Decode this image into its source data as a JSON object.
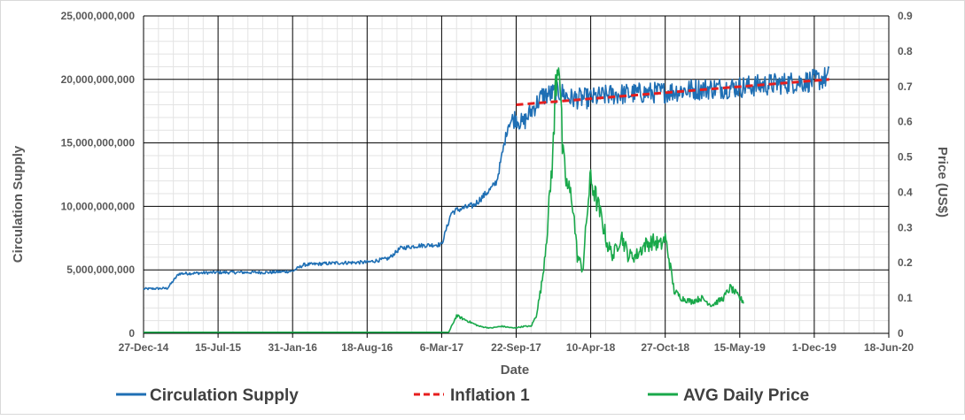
{
  "chart_data": {
    "type": "line",
    "xlabel": "Date",
    "ylabel": "Circulation Supply",
    "y2label": "Price (US$)",
    "x_ticks": [
      "27-Dec-14",
      "15-Jul-15",
      "31-Jan-16",
      "18-Aug-16",
      "6-Mar-17",
      "22-Sep-17",
      "10-Apr-18",
      "27-Oct-18",
      "15-May-19",
      "1-Dec-19",
      "18-Jun-20"
    ],
    "y_ticks": [
      "0",
      "5,000,000,000",
      "10,000,000,000",
      "15,000,000,000",
      "20,000,000,000",
      "25,000,000,000"
    ],
    "y2_ticks": [
      "0",
      "0.1",
      "0.2",
      "0.3",
      "0.4",
      "0.5",
      "0.6",
      "0.7",
      "0.8",
      "0.9"
    ],
    "ylim": [
      0,
      25000000000
    ],
    "y2lim": [
      0,
      0.9
    ],
    "x_range": [
      "2014-12-27",
      "2020-06-18"
    ],
    "grid": true,
    "legend_position": "bottom",
    "series": [
      {
        "name": "Circulation Supply",
        "axis": "left",
        "color": "#1f6fb4",
        "style": "solid",
        "x": [
          "2014-12-27",
          "2015-03-01",
          "2015-04-01",
          "2015-07-15",
          "2015-12-01",
          "2016-01-31",
          "2016-03-01",
          "2016-06-01",
          "2016-08-18",
          "2016-10-15",
          "2016-11-15",
          "2017-01-01",
          "2017-03-06",
          "2017-04-01",
          "2017-04-15",
          "2017-06-01",
          "2017-07-20",
          "2017-08-01",
          "2017-09-01",
          "2017-09-20",
          "2017-10-10",
          "2017-11-01",
          "2017-12-01",
          "2018-01-01",
          "2018-01-20",
          "2018-02-15",
          "2018-04-10",
          "2018-06-01",
          "2018-10-27",
          "2019-01-01",
          "2019-05-15",
          "2019-08-01",
          "2019-12-01",
          "2020-01-10"
        ],
        "values": [
          3500000000,
          3550000000,
          4700000000,
          4800000000,
          4800000000,
          4900000000,
          5400000000,
          5550000000,
          5600000000,
          5900000000,
          6700000000,
          6900000000,
          7000000000,
          9500000000,
          9700000000,
          10100000000,
          11500000000,
          12000000000,
          16500000000,
          17000000000,
          16500000000,
          17500000000,
          18700000000,
          18900000000,
          19000000000,
          18500000000,
          18500000000,
          18800000000,
          19000000000,
          19200000000,
          19400000000,
          19600000000,
          19900000000,
          20200000000
        ]
      },
      {
        "name": "Inflation 1",
        "axis": "left",
        "color": "#e61e1e",
        "style": "dashed",
        "x": [
          "2017-09-22",
          "2020-01-10"
        ],
        "values": [
          18000000000,
          20000000000
        ]
      },
      {
        "name": "AVG Daily Price",
        "axis": "right",
        "color": "#19a84a",
        "style": "solid",
        "x": [
          "2014-12-27",
          "2017-03-01",
          "2017-03-25",
          "2017-04-15",
          "2017-05-15",
          "2017-06-15",
          "2017-07-15",
          "2017-08-15",
          "2017-09-15",
          "2017-10-15",
          "2017-11-01",
          "2017-11-15",
          "2017-12-01",
          "2017-12-15",
          "2018-01-01",
          "2018-01-05",
          "2018-01-15",
          "2018-01-25",
          "2018-02-05",
          "2018-02-20",
          "2018-03-05",
          "2018-03-20",
          "2018-04-01",
          "2018-04-10",
          "2018-04-25",
          "2018-05-15",
          "2018-05-25",
          "2018-06-10",
          "2018-07-01",
          "2018-07-20",
          "2018-08-10",
          "2018-09-01",
          "2018-09-25",
          "2018-10-15",
          "2018-10-27",
          "2018-11-05",
          "2018-11-20",
          "2018-12-10",
          "2019-01-05",
          "2019-02-01",
          "2019-03-01",
          "2019-04-01",
          "2019-04-20",
          "2019-05-15",
          "2019-05-25"
        ],
        "values": [
          0.003,
          0.003,
          0.003,
          0.05,
          0.035,
          0.02,
          0.015,
          0.02,
          0.015,
          0.02,
          0.02,
          0.05,
          0.15,
          0.3,
          0.55,
          0.7,
          0.8,
          0.5,
          0.42,
          0.38,
          0.22,
          0.18,
          0.35,
          0.44,
          0.38,
          0.3,
          0.25,
          0.22,
          0.28,
          0.22,
          0.22,
          0.25,
          0.26,
          0.25,
          0.27,
          0.22,
          0.12,
          0.1,
          0.09,
          0.1,
          0.08,
          0.1,
          0.13,
          0.1,
          0.09
        ]
      }
    ]
  }
}
